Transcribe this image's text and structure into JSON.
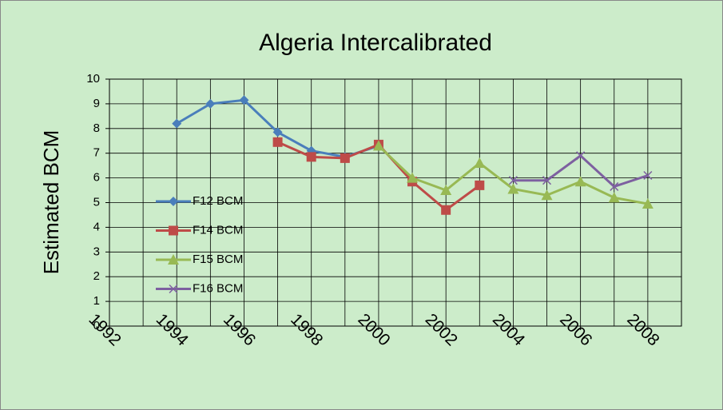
{
  "chart_data": {
    "type": "line",
    "title": "Algeria Intercalibrated",
    "y_label": "Estimated BCM",
    "x": [
      1992,
      1993,
      1994,
      1995,
      1996,
      1997,
      1998,
      1999,
      2000,
      2001,
      2002,
      2003,
      2004,
      2005,
      2006,
      2007,
      2008
    ],
    "xlim": [
      1992,
      2009
    ],
    "xticks": [
      1992,
      1994,
      1996,
      1998,
      2000,
      2002,
      2004,
      2006,
      2008
    ],
    "ylim": [
      0,
      10
    ],
    "yticks": [
      0,
      1,
      2,
      3,
      4,
      5,
      6,
      7,
      8,
      9,
      10
    ],
    "grid": true,
    "legend": "left",
    "series": [
      {
        "name": "F12 BCM",
        "color": "#4a7ebb",
        "marker": "diamond",
        "values": [
          null,
          null,
          8.2,
          9.0,
          9.15,
          7.85,
          7.1,
          6.85,
          7.3,
          null,
          null,
          null,
          null,
          null,
          null,
          null,
          null
        ]
      },
      {
        "name": "F14 BCM",
        "color": "#be4b48",
        "marker": "square",
        "values": [
          null,
          null,
          null,
          null,
          null,
          7.45,
          6.85,
          6.8,
          7.35,
          5.85,
          4.7,
          5.7,
          null,
          null,
          null,
          null,
          null
        ]
      },
      {
        "name": "F15 BCM",
        "color": "#98b954",
        "marker": "triangle",
        "values": [
          null,
          null,
          null,
          null,
          null,
          null,
          null,
          null,
          7.3,
          6.0,
          5.5,
          6.6,
          5.55,
          5.3,
          5.85,
          5.2,
          4.95
        ]
      },
      {
        "name": "F16 BCM",
        "color": "#7d60a0",
        "marker": "x",
        "values": [
          null,
          null,
          null,
          null,
          null,
          null,
          null,
          null,
          null,
          null,
          null,
          null,
          5.9,
          5.9,
          6.9,
          5.65,
          6.1
        ]
      }
    ]
  }
}
